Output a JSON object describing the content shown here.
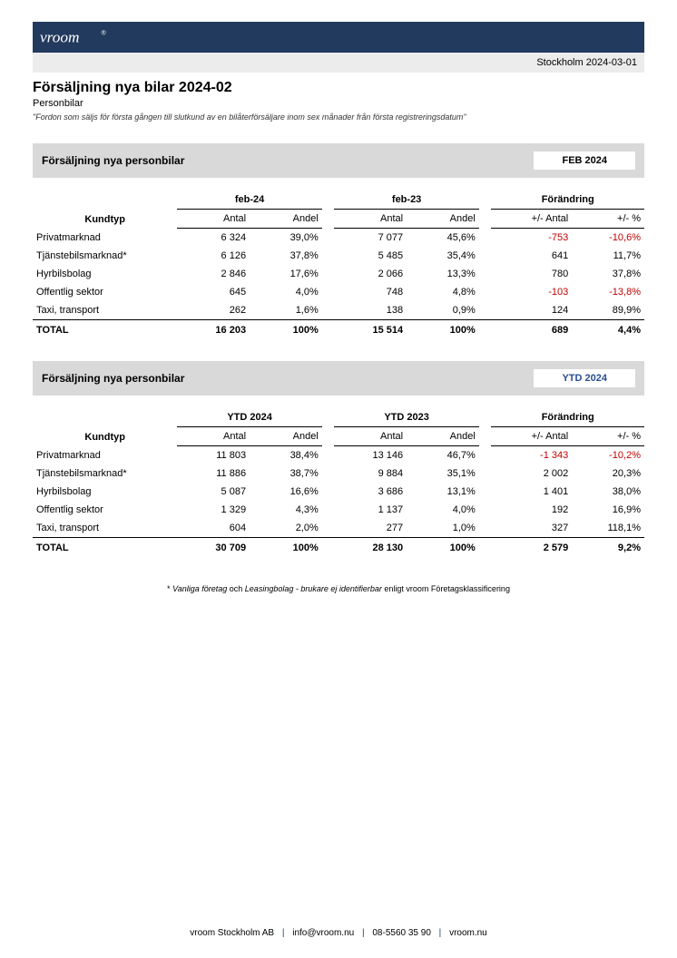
{
  "colors": {
    "brand_bar": "#223a5e",
    "meta_bar": "#ececec",
    "section_header": "#d9d9d9",
    "negative": "#c00000",
    "ytd_badge_text": "#2a4d8f"
  },
  "header": {
    "logo_text": "vroom",
    "location_date": "Stockholm 2024-03-01",
    "title": "Försäljning nya bilar 2024-02",
    "subtitle": "Personbilar",
    "definition": "\"Fordon som säljs för första gången till slutkund av en bilåterförsäljare inom sex månader från första registreringsdatum\""
  },
  "section_label": "Försäljning nya personbilar",
  "columns": {
    "kundtyp": "Kundtyp",
    "antal": "Antal",
    "andel": "Andel",
    "forandring": "Förändring",
    "pm_antal": "+/- Antal",
    "pm_pct": "+/- %"
  },
  "month": {
    "badge": "FEB 2024",
    "period_a": "feb-24",
    "period_b": "feb-23",
    "rows": [
      {
        "label": "Privatmarknad",
        "a_n": "6 324",
        "a_p": "39,0%",
        "b_n": "7 077",
        "b_p": "45,6%",
        "d_n": "-753",
        "d_p": "-10,6%",
        "neg": true
      },
      {
        "label": "Tjänstebilsmarknad*",
        "a_n": "6 126",
        "a_p": "37,8%",
        "b_n": "5 485",
        "b_p": "35,4%",
        "d_n": "641",
        "d_p": "11,7%",
        "neg": false
      },
      {
        "label": "Hyrbilsbolag",
        "a_n": "2 846",
        "a_p": "17,6%",
        "b_n": "2 066",
        "b_p": "13,3%",
        "d_n": "780",
        "d_p": "37,8%",
        "neg": false
      },
      {
        "label": "Offentlig sektor",
        "a_n": "645",
        "a_p": "4,0%",
        "b_n": "748",
        "b_p": "4,8%",
        "d_n": "-103",
        "d_p": "-13,8%",
        "neg": true
      },
      {
        "label": "Taxi, transport",
        "a_n": "262",
        "a_p": "1,6%",
        "b_n": "138",
        "b_p": "0,9%",
        "d_n": "124",
        "d_p": "89,9%",
        "neg": false
      }
    ],
    "total": {
      "label": "TOTAL",
      "a_n": "16 203",
      "a_p": "100%",
      "b_n": "15 514",
      "b_p": "100%",
      "d_n": "689",
      "d_p": "4,4%"
    }
  },
  "ytd": {
    "badge": "YTD 2024",
    "period_a": "YTD 2024",
    "period_b": "YTD 2023",
    "rows": [
      {
        "label": "Privatmarknad",
        "a_n": "11 803",
        "a_p": "38,4%",
        "b_n": "13 146",
        "b_p": "46,7%",
        "d_n": "-1 343",
        "d_p": "-10,2%",
        "neg": true
      },
      {
        "label": "Tjänstebilsmarknad*",
        "a_n": "11 886",
        "a_p": "38,7%",
        "b_n": "9 884",
        "b_p": "35,1%",
        "d_n": "2 002",
        "d_p": "20,3%",
        "neg": false
      },
      {
        "label": "Hyrbilsbolag",
        "a_n": "5 087",
        "a_p": "16,6%",
        "b_n": "3 686",
        "b_p": "13,1%",
        "d_n": "1 401",
        "d_p": "38,0%",
        "neg": false
      },
      {
        "label": "Offentlig sektor",
        "a_n": "1 329",
        "a_p": "4,3%",
        "b_n": "1 137",
        "b_p": "4,0%",
        "d_n": "192",
        "d_p": "16,9%",
        "neg": false
      },
      {
        "label": "Taxi, transport",
        "a_n": "604",
        "a_p": "2,0%",
        "b_n": "277",
        "b_p": "1,0%",
        "d_n": "327",
        "d_p": "118,1%",
        "neg": false
      }
    ],
    "total": {
      "label": "TOTAL",
      "a_n": "30 709",
      "a_p": "100%",
      "b_n": "28 130",
      "b_p": "100%",
      "d_n": "2 579",
      "d_p": "9,2%"
    }
  },
  "footnote": {
    "pre": "* ",
    "i1": "Vanliga företag",
    "mid": " och ",
    "i2": "Leasingbolag - brukare ej identifierbar",
    "post": " enligt vroom Företagsklassificering"
  },
  "footer": {
    "company": "vroom Stockholm AB",
    "email": "info@vroom.nu",
    "phone": "08-5560 35 90",
    "site": "vroom.nu"
  }
}
